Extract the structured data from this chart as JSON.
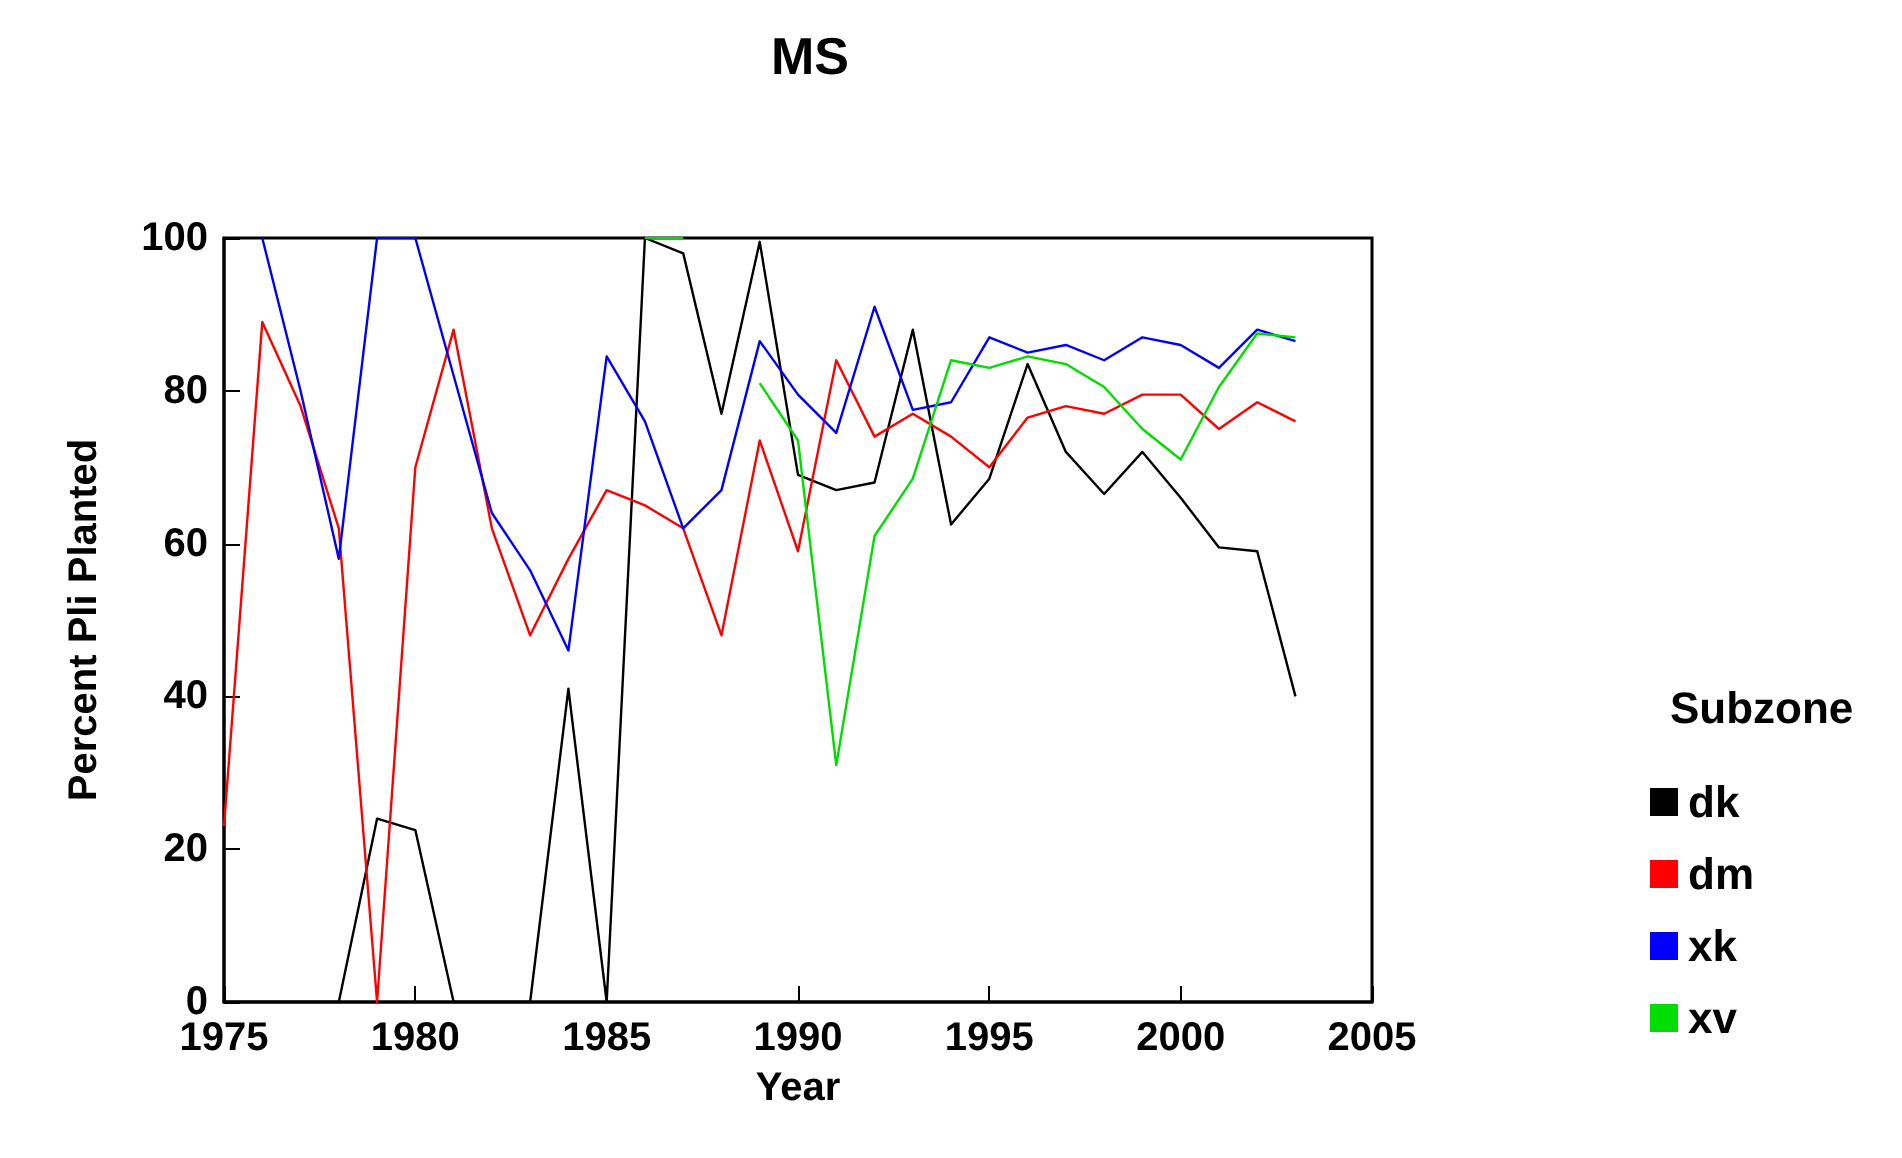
{
  "chart_data": {
    "type": "line",
    "title": "MS",
    "xlabel": "Year",
    "ylabel": "Percent Pli Planted",
    "legend_title": "Subzone",
    "x": [
      1975,
      1976,
      1977,
      1978,
      1979,
      1980,
      1981,
      1982,
      1983,
      1984,
      1985,
      1986,
      1987,
      1988,
      1989,
      1990,
      1991,
      1992,
      1993,
      1994,
      1995,
      1996,
      1997,
      1998,
      1999,
      2000,
      2001,
      2002,
      2003
    ],
    "series": [
      {
        "name": "dk",
        "color": "#000000",
        "values": [
          0,
          0,
          0,
          0,
          24,
          22.5,
          0,
          0,
          0,
          41,
          0,
          100,
          98,
          77,
          99.5,
          69,
          67,
          68,
          88,
          62.5,
          68.5,
          83.5,
          72,
          66.5,
          72,
          66,
          59.5,
          59,
          40
        ]
      },
      {
        "name": "dm",
        "color": "#ff0000",
        "values": [
          23,
          89,
          78,
          62,
          0,
          70,
          88,
          62,
          48,
          58,
          67,
          65,
          62,
          48,
          73.5,
          59,
          84,
          74,
          77,
          74,
          70,
          76.5,
          78,
          77,
          79.5,
          79.5,
          75,
          78.5,
          76
        ]
      },
      {
        "name": "xk",
        "color": "#0000ff",
        "values": [
          null,
          100,
          80,
          58,
          100,
          100,
          82,
          64,
          56.5,
          46,
          84.5,
          76,
          62,
          67,
          86.5,
          79.5,
          74.5,
          91,
          77.5,
          78.5,
          87,
          85,
          86,
          84,
          87,
          86,
          83,
          88,
          86.5
        ]
      },
      {
        "name": "xv",
        "color": "#00dd00",
        "values": [
          null,
          null,
          null,
          null,
          null,
          null,
          null,
          null,
          null,
          null,
          null,
          100,
          100,
          null,
          81,
          73.5,
          31,
          61,
          68.5,
          84,
          83,
          84.5,
          83.5,
          80.5,
          75,
          71,
          80.5,
          87.5,
          87
        ]
      }
    ],
    "xlim": [
      1975,
      2005
    ],
    "xticks": [
      1975,
      1980,
      1985,
      1990,
      1995,
      2000,
      2005
    ],
    "ylim": [
      0,
      100
    ],
    "yticks": [
      0,
      20,
      40,
      60,
      80,
      100
    ],
    "legend": "right",
    "marker": "none",
    "line_style": "solid",
    "grid": false
  }
}
